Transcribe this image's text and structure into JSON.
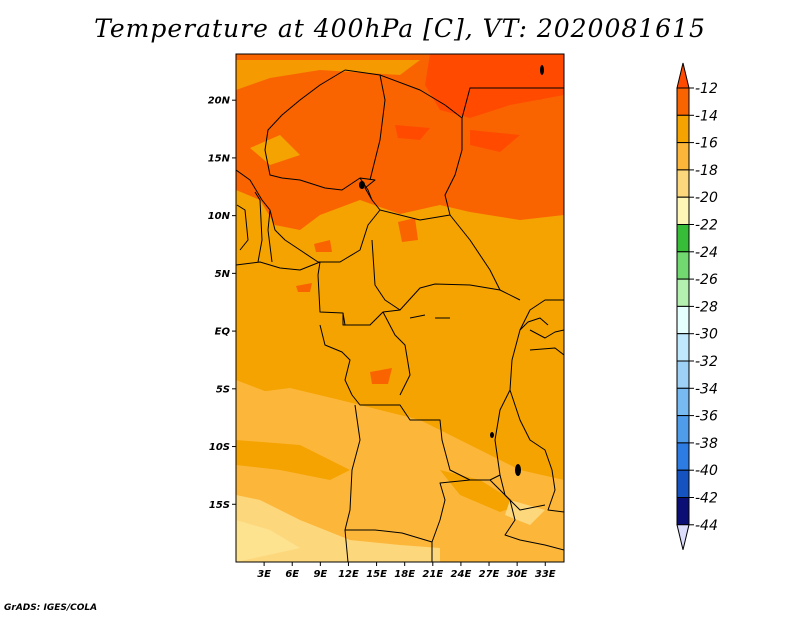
{
  "title": "Temperature at 400hPa [C], VT: 2020081615",
  "credit": "GrADS: IGES/COLA",
  "map": {
    "lon_range": [
      0,
      35
    ],
    "lat_range": [
      -20,
      24
    ],
    "lat_ticks": [
      {
        "value": 20,
        "label": "20N"
      },
      {
        "value": 15,
        "label": "15N"
      },
      {
        "value": 10,
        "label": "10N"
      },
      {
        "value": 5,
        "label": "5N"
      },
      {
        "value": 0,
        "label": "EQ"
      },
      {
        "value": -5,
        "label": "5S"
      },
      {
        "value": -10,
        "label": "10S"
      },
      {
        "value": -15,
        "label": "15S"
      }
    ],
    "lon_ticks": [
      {
        "value": 3,
        "label": "3E"
      },
      {
        "value": 6,
        "label": "6E"
      },
      {
        "value": 9,
        "label": "9E"
      },
      {
        "value": 12,
        "label": "12E"
      },
      {
        "value": 15,
        "label": "15E"
      },
      {
        "value": 18,
        "label": "18E"
      },
      {
        "value": 21,
        "label": "21E"
      },
      {
        "value": 24,
        "label": "24E"
      },
      {
        "value": 27,
        "label": "27E"
      },
      {
        "value": 30,
        "label": "30E"
      },
      {
        "value": 33,
        "label": "33E"
      }
    ],
    "background_color": "#f5a300"
  },
  "colorbar": {
    "labels": [
      "-12",
      "-14",
      "-16",
      "-18",
      "-20",
      "-22",
      "-24",
      "-26",
      "-28",
      "-30",
      "-32",
      "-34",
      "-36",
      "-38",
      "-40",
      "-42",
      "-44"
    ],
    "colors": [
      "#ff4a00",
      "#f96400",
      "#f5a300",
      "#fcb73b",
      "#fdd77c",
      "#fef6b4",
      "#37bd37",
      "#71d96f",
      "#b4f0b0",
      "#e5ffff",
      "#bfe8fc",
      "#9dd1f5",
      "#77baf1",
      "#4f9ceb",
      "#2c7ce3",
      "#1553c1",
      "#0b0f75",
      "#dcdcfc"
    ]
  }
}
